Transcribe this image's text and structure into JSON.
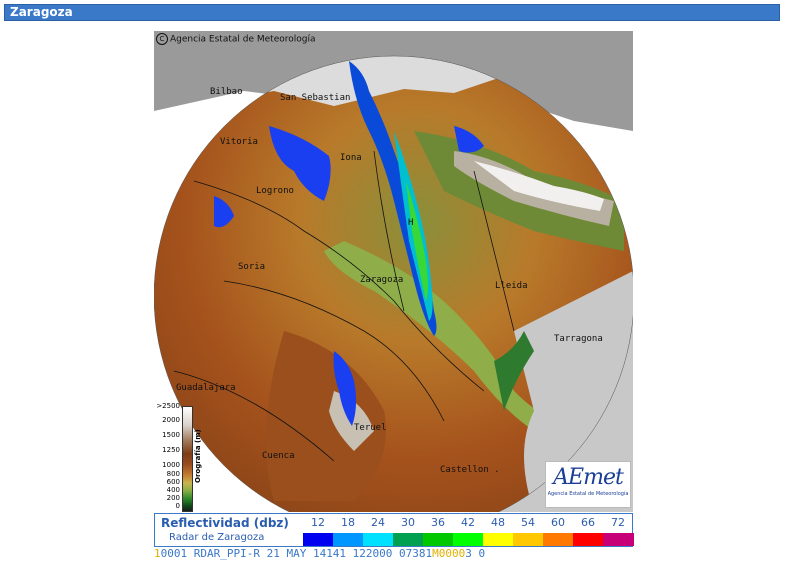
{
  "window": {
    "title": "Zaragoza"
  },
  "map": {
    "copyright_text": "Agencia Estatal de Meteorología",
    "copyright_symbol": "C",
    "cities": {
      "bilbao": "Bilbao",
      "san_sebastian": "San Sebastian",
      "vitoria": "Vitoria",
      "pamplona": "Iona",
      "logrono": "Logrono",
      "huesca": "H",
      "soria": "Soria",
      "zaragoza": "Zaragoza",
      "lleida": "Lleida",
      "tarragona": "Tarragona",
      "guadalajara": "Guadalajara",
      "teruel": "Teruel",
      "cuenca": "Cuenca",
      "castellon": "Castellon ."
    },
    "orography": {
      "title": "Orografía (m)",
      "labels": [
        ">2500",
        "2000",
        "1500",
        "1250",
        "1000",
        "800",
        "600",
        "400",
        "200",
        "0"
      ]
    },
    "logo": {
      "text": "AEmet",
      "subtitle": "Agencia Estatal de Meteorología"
    }
  },
  "legend": {
    "title": "Reflectividad (dbz)",
    "radar_name": "Radar de Zaragoza",
    "levels": [
      "12",
      "18",
      "24",
      "30",
      "36",
      "42",
      "48",
      "54",
      "60",
      "66",
      "72"
    ],
    "colors": [
      "#0000f0",
      "#0096ff",
      "#00e1ff",
      "#00a050",
      "#00c800",
      "#00ff00",
      "#ffff00",
      "#ffc800",
      "#ff7800",
      "#ff0000",
      "#c80078"
    ]
  },
  "status": {
    "prefix": "1",
    "text": "0001 RDAR_PPI-R   21 MAY 14141 122000 07381",
    "highlight": "M0000",
    "suffix": "3 0"
  }
}
